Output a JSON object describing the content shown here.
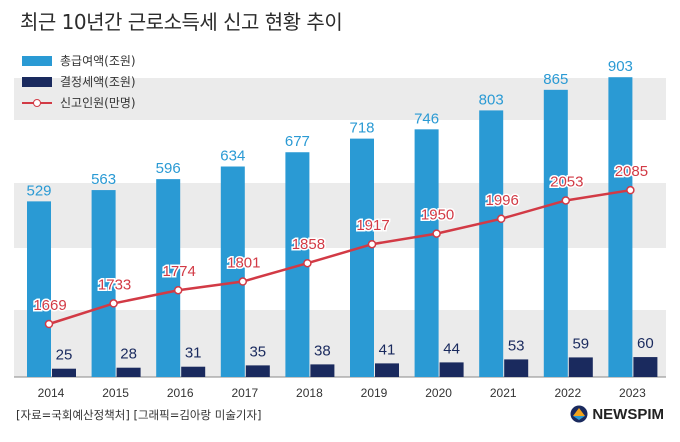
{
  "title": "최근 10년간 근로소득세 신고 현황 추이",
  "legend": {
    "total": "총급여액(조원)",
    "tax": "결정세액(조원)",
    "filers": "신고인원(만명)"
  },
  "source": "[자료=국회예산정책처] [그래픽=김아랑 미술기자]",
  "brand": "NEWSPIM",
  "colors": {
    "total_bar": "#2a9ad4",
    "tax_bar": "#1a2a5e",
    "line": "#d23a45",
    "total_label": "#2a9ad4",
    "tax_label": "#1a2a5e",
    "line_label": "#d23a45",
    "band": "#ebebeb"
  },
  "chart_data": {
    "type": "bar",
    "categories": [
      "2014",
      "2015",
      "2016",
      "2017",
      "2018",
      "2019",
      "2020",
      "2021",
      "2022",
      "2023"
    ],
    "series": [
      {
        "name": "총급여액(조원)",
        "type": "bar",
        "values": [
          529,
          563,
          596,
          634,
          677,
          718,
          746,
          803,
          865,
          903
        ]
      },
      {
        "name": "결정세액(조원)",
        "type": "bar",
        "values": [
          25,
          28,
          31,
          35,
          38,
          41,
          44,
          53,
          59,
          60
        ]
      },
      {
        "name": "신고인원(만명)",
        "type": "line",
        "values": [
          1669,
          1733,
          1774,
          1801,
          1858,
          1917,
          1950,
          1996,
          2053,
          2085
        ]
      }
    ],
    "grid": false,
    "legend_position": "top-left"
  }
}
